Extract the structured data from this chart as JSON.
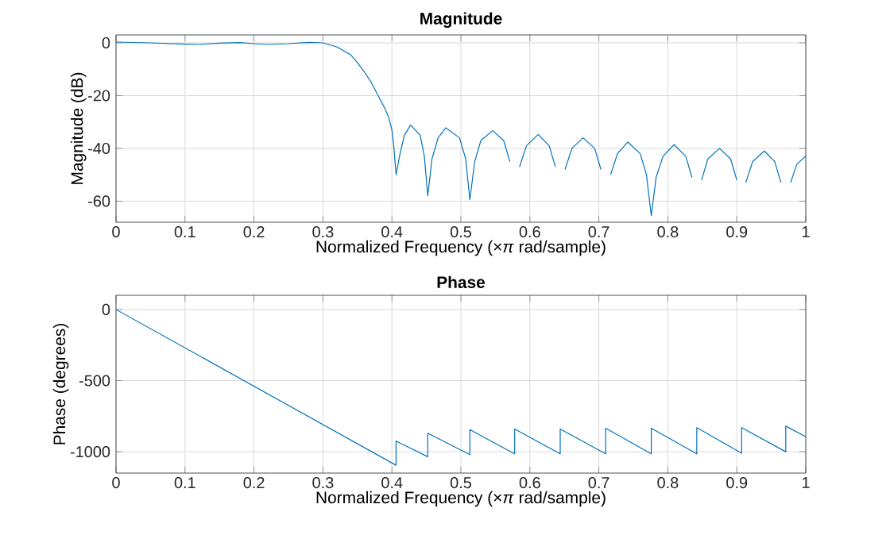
{
  "chart_data": [
    {
      "type": "line",
      "title": "Magnitude",
      "xlabel": "Normalized Frequency  (×*π* rad/sample)",
      "ylabel": "Magnitude (dB)",
      "x": [
        0,
        0.05,
        0.1,
        0.12,
        0.15,
        0.18,
        0.2,
        0.22,
        0.25,
        0.28,
        0.3,
        0.32,
        0.34,
        0.35,
        0.36,
        0.37,
        0.38,
        0.39,
        0.395,
        0.4,
        0.403,
        0.406,
        0.411,
        0.418,
        0.427,
        0.441,
        0.447,
        0.452,
        0.458,
        0.467,
        0.478,
        0.498,
        0.507,
        0.513,
        0.52,
        0.529,
        0.546,
        0.562,
        0.571,
        0.578,
        0.585,
        0.595,
        0.612,
        0.628,
        0.637,
        0.644,
        0.651,
        0.661,
        0.677,
        0.694,
        0.703,
        0.71,
        0.717,
        0.727,
        0.742,
        0.76,
        0.769,
        0.776,
        0.783,
        0.793,
        0.809,
        0.826,
        0.835,
        0.842,
        0.849,
        0.858,
        0.875,
        0.891,
        0.9,
        0.907,
        0.913,
        0.923,
        0.94,
        0.955,
        0.964,
        0.971,
        0.978,
        0.987,
        1.0
      ],
      "series": [
        {
          "color": "#0072bd",
          "values": [
            0.3,
            0,
            -0.5,
            -0.6,
            -0.1,
            0.1,
            -0.3,
            -0.6,
            -0.3,
            0.2,
            0,
            -1.5,
            -4.5,
            -7.5,
            -11,
            -15,
            -20,
            -25,
            -28,
            -33,
            -40,
            -50,
            -43,
            -35,
            -31.2,
            -35,
            -43,
            -58,
            -44,
            -36,
            -32.2,
            -36,
            -44,
            -59.5,
            -45,
            -37,
            -33.3,
            -37,
            -45,
            null,
            -47,
            -39,
            -34.7,
            -39,
            -47,
            null,
            -48,
            -40,
            -36,
            -40,
            -48,
            null,
            -50,
            -42,
            -37.6,
            -42,
            -50,
            -65.5,
            -51,
            -43,
            -38.6,
            -43,
            -51,
            null,
            -52,
            -44,
            -40,
            -44,
            -52,
            null,
            -53,
            -45,
            -41,
            -45,
            -53,
            null,
            -53,
            -46,
            -42.9
          ]
        }
      ],
      "xlim": [
        0,
        1
      ],
      "ylim": [
        -68,
        3
      ],
      "xticks": [
        0,
        0.1,
        0.2,
        0.3,
        0.4,
        0.5,
        0.6,
        0.7,
        0.8,
        0.9,
        1
      ],
      "yticks": [
        -60,
        -40,
        -20,
        0
      ],
      "grid": true
    },
    {
      "type": "line",
      "title": "Phase",
      "xlabel": "Normalized Frequency  (×*π* rad/sample)",
      "ylabel": "Phase (degrees)",
      "x": [
        0,
        0.406,
        0.406,
        0.452,
        0.452,
        0.513,
        0.513,
        0.578,
        0.578,
        0.644,
        0.644,
        0.71,
        0.71,
        0.776,
        0.776,
        0.842,
        0.842,
        0.907,
        0.907,
        0.971,
        0.971,
        1.0
      ],
      "series": [
        {
          "color": "#0072bd",
          "values": [
            0,
            -1095,
            -925,
            -1035,
            -870,
            -1020,
            -845,
            -1015,
            -840,
            -1015,
            -840,
            -1015,
            -835,
            -1015,
            -835,
            -1015,
            -830,
            -1010,
            -830,
            -1000,
            -820,
            -895
          ]
        }
      ],
      "xlim": [
        0,
        1
      ],
      "ylim": [
        -1150,
        100
      ],
      "xticks": [
        0,
        0.1,
        0.2,
        0.3,
        0.4,
        0.5,
        0.6,
        0.7,
        0.8,
        0.9,
        1
      ],
      "yticks": [
        -1000,
        -500,
        0
      ],
      "grid": true
    }
  ]
}
